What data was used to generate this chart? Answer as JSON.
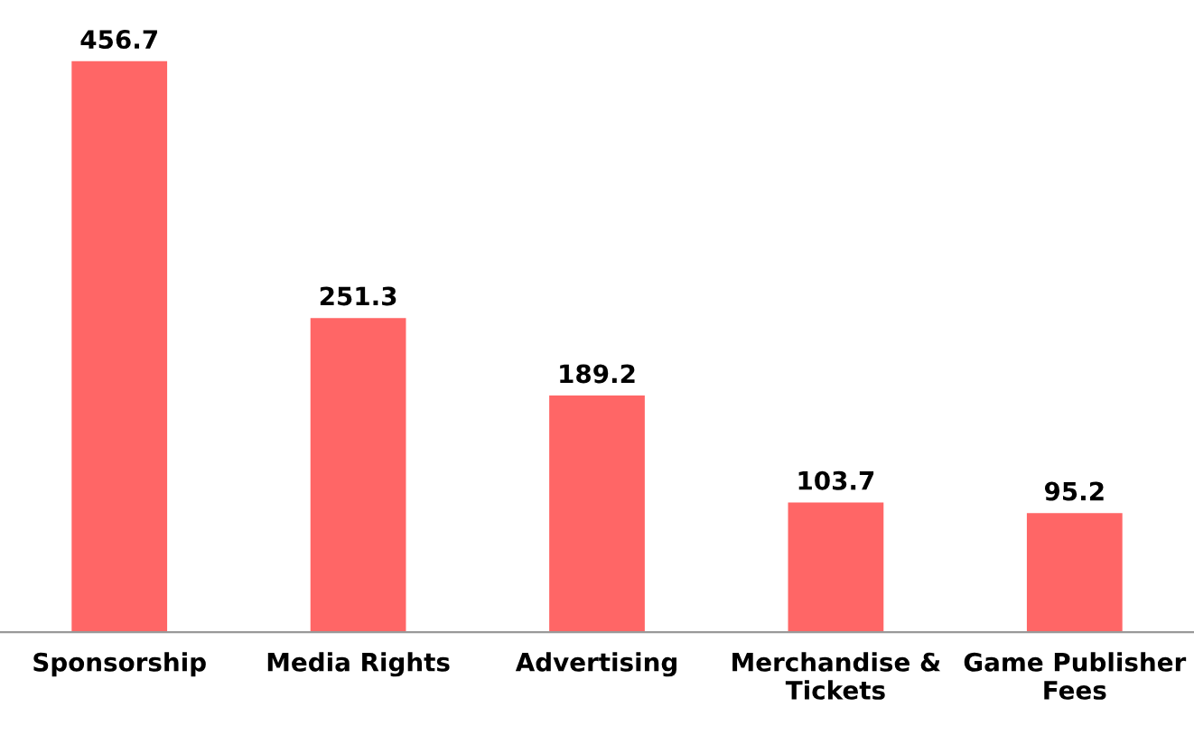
{
  "chart_data": {
    "type": "bar",
    "categories": [
      "Sponsorship",
      "Media Rights",
      "Advertising",
      "Merchandise &\nTickets",
      "Game Publisher\nFees"
    ],
    "values": [
      456.7,
      251.3,
      189.2,
      103.7,
      95.2
    ],
    "color": "#ff6666",
    "data_labels": true,
    "grid": false,
    "legend": false
  }
}
